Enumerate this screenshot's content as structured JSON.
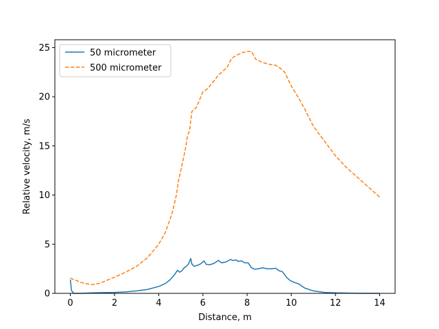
{
  "chart_data": {
    "type": "line",
    "title": "",
    "xlabel": "Distance, m",
    "ylabel": "Relative velocity, m/s",
    "xlim": [
      -0.7,
      14.7
    ],
    "ylim": [
      0,
      25.8
    ],
    "xticks": [
      0,
      2,
      4,
      6,
      8,
      10,
      12,
      14
    ],
    "yticks": [
      0,
      5,
      10,
      15,
      20,
      25
    ],
    "grid": false,
    "legend_position": "top-left",
    "series": [
      {
        "name": "50 micrometer",
        "color": "#1f77b4",
        "style": "solid",
        "x": [
          0,
          0.05,
          0.15,
          0.5,
          1,
          1.5,
          2,
          2.5,
          3,
          3.5,
          4,
          4.3,
          4.5,
          4.7,
          4.85,
          4.95,
          5.05,
          5.15,
          5.25,
          5.35,
          5.45,
          5.5,
          5.6,
          5.75,
          5.9,
          6.05,
          6.15,
          6.3,
          6.5,
          6.7,
          6.85,
          7.05,
          7.25,
          7.35,
          7.5,
          7.6,
          7.75,
          7.9,
          8.05,
          8.2,
          8.35,
          8.5,
          8.7,
          8.9,
          9.1,
          9.3,
          9.45,
          9.6,
          9.8,
          9.95,
          10.15,
          10.35,
          10.6,
          11,
          11.5,
          12,
          13,
          14
        ],
        "values": [
          1.4,
          0.3,
          0.0,
          0.0,
          0.05,
          0.08,
          0.1,
          0.15,
          0.25,
          0.4,
          0.7,
          1.0,
          1.35,
          1.85,
          2.35,
          2.15,
          2.3,
          2.6,
          2.75,
          3.0,
          3.55,
          3.0,
          2.75,
          2.85,
          3.0,
          3.3,
          2.95,
          2.9,
          3.05,
          3.35,
          3.1,
          3.2,
          3.45,
          3.35,
          3.4,
          3.25,
          3.3,
          3.1,
          3.1,
          2.6,
          2.45,
          2.5,
          2.6,
          2.5,
          2.5,
          2.55,
          2.3,
          2.2,
          1.6,
          1.3,
          1.1,
          0.95,
          0.55,
          0.25,
          0.1,
          0.05,
          0.01,
          0.0
        ]
      },
      {
        "name": "500 micrometer",
        "color": "#ff7f0e",
        "style": "dashed",
        "x": [
          0,
          0.5,
          0.8,
          1.0,
          1.3,
          2.0,
          2.5,
          3.0,
          3.5,
          4.0,
          4.3,
          4.6,
          4.8,
          4.9,
          5.0,
          5.2,
          5.3,
          5.4,
          5.5,
          5.7,
          5.85,
          6.0,
          6.2,
          6.5,
          6.7,
          6.9,
          7.1,
          7.3,
          7.5,
          7.8,
          8.0,
          8.2,
          8.4,
          8.7,
          9.0,
          9.3,
          9.5,
          9.7,
          10.0,
          10.3,
          10.6,
          11.0,
          11.5,
          12.0,
          12.5,
          13.0,
          13.5,
          14.0
        ],
        "values": [
          1.55,
          1.1,
          0.95,
          0.9,
          1.0,
          1.65,
          2.15,
          2.75,
          3.65,
          5.0,
          6.2,
          8.1,
          10.0,
          11.5,
          12.5,
          14.6,
          16.0,
          16.6,
          18.5,
          18.9,
          19.7,
          20.5,
          20.8,
          21.6,
          22.2,
          22.6,
          23.0,
          23.9,
          24.2,
          24.5,
          24.6,
          24.6,
          23.8,
          23.5,
          23.3,
          23.2,
          22.9,
          22.5,
          21.1,
          20.0,
          18.8,
          17.0,
          15.5,
          14.0,
          12.8,
          11.8,
          10.8,
          9.8
        ]
      }
    ]
  }
}
